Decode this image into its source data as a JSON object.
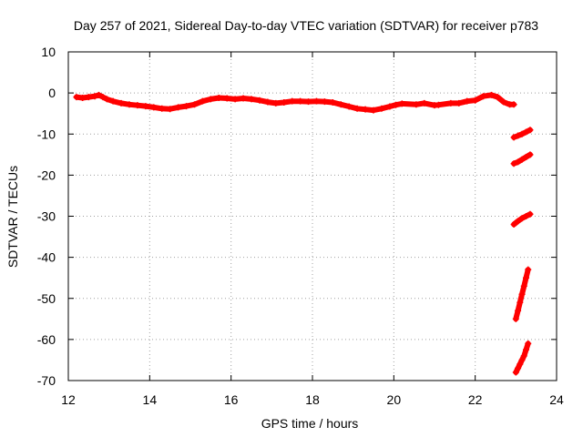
{
  "chart_data": {
    "type": "scatter",
    "title": "Day 257 of 2021, Sidereal Day-to-day VTEC variation (SDTVAR) for receiver p783",
    "xlabel": "GPS time / hours",
    "ylabel": "SDTVAR / TECUs",
    "xlim": [
      12,
      24
    ],
    "ylim": [
      -70,
      10
    ],
    "xticks": [
      "12",
      "14",
      "16",
      "18",
      "20",
      "22",
      "24"
    ],
    "yticks": [
      "10",
      "0",
      "-10",
      "-20",
      "-30",
      "-40",
      "-50",
      "-60",
      "-70"
    ],
    "grid": true,
    "marker": "+",
    "color": "#ff0000",
    "series": [
      {
        "x": [
          12.2,
          12.35,
          12.5,
          12.65,
          12.75,
          12.85,
          12.95,
          13.1,
          13.3,
          13.5,
          13.7,
          13.9,
          14.1,
          14.3,
          14.5,
          14.7,
          14.9,
          15.1,
          15.3,
          15.5,
          15.7,
          15.9,
          16.1,
          16.3,
          16.5,
          16.7,
          16.9,
          17.1,
          17.3,
          17.5,
          17.7,
          17.9,
          18.1,
          18.3,
          18.5,
          18.7,
          18.9,
          19.1,
          19.3,
          19.5,
          19.7,
          19.9,
          20.05,
          20.2,
          20.55,
          20.75,
          21.0,
          21.1,
          21.4,
          21.6,
          21.8,
          22.0,
          22.2,
          22.4,
          22.55,
          22.7,
          22.85,
          22.95
        ],
        "y": [
          -1,
          -1.2,
          -1,
          -0.8,
          -0.5,
          -1,
          -1.5,
          -2,
          -2.5,
          -2.8,
          -3,
          -3.2,
          -3.5,
          -3.8,
          -3.9,
          -3.5,
          -3.2,
          -2.8,
          -2,
          -1.5,
          -1.2,
          -1.3,
          -1.5,
          -1.3,
          -1.5,
          -1.8,
          -2.2,
          -2.5,
          -2.3,
          -2,
          -2,
          -2.1,
          -2,
          -2.1,
          -2.3,
          -2.8,
          -3.3,
          -3.8,
          -4,
          -4.2,
          -3.8,
          -3.3,
          -2.9,
          -2.6,
          -2.8,
          -2.5,
          -3,
          -2.9,
          -2.5,
          -2.5,
          -2,
          -1.8,
          -0.8,
          -0.5,
          -1,
          -2.2,
          -2.8,
          -2.8
        ]
      },
      {
        "x": [
          22.95,
          23.05,
          23.15,
          23.25,
          23.35
        ],
        "y": [
          -10.8,
          -10.4,
          -10,
          -9.5,
          -9
        ]
      },
      {
        "x": [
          22.95,
          23.05,
          23.15,
          23.25,
          23.35
        ],
        "y": [
          -17.2,
          -16.8,
          -16.2,
          -15.6,
          -15
        ]
      },
      {
        "x": [
          22.95,
          23.05,
          23.15,
          23.25,
          23.35
        ],
        "y": [
          -32,
          -31.2,
          -30.5,
          -30,
          -29.5
        ]
      },
      {
        "x": [
          23.0,
          23.05,
          23.1,
          23.15,
          23.2,
          23.25,
          23.3
        ],
        "y": [
          -55,
          -53,
          -51,
          -49,
          -47,
          -45,
          -43
        ]
      },
      {
        "x": [
          23.0,
          23.05,
          23.1,
          23.15,
          23.2,
          23.25,
          23.3
        ],
        "y": [
          -68,
          -67,
          -66,
          -65,
          -64,
          -62.5,
          -61
        ]
      }
    ]
  }
}
